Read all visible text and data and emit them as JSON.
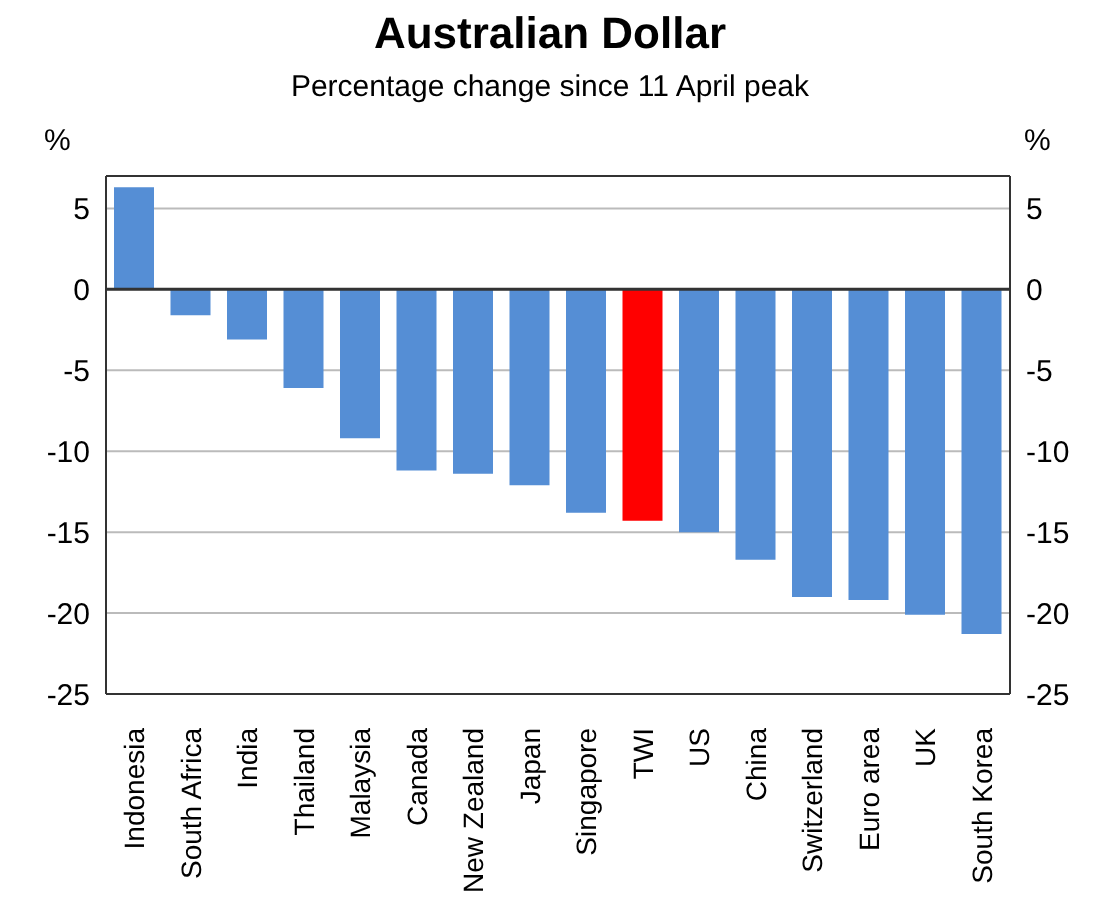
{
  "chart_data": {
    "type": "bar",
    "title": "Australian Dollar",
    "subtitle": "Percentage change since 11 April peak",
    "ylabel": "%",
    "y2label": "%",
    "categories": [
      "Indonesia",
      "South Africa",
      "India",
      "Thailand",
      "Malaysia",
      "Canada",
      "New Zealand",
      "Japan",
      "Singapore",
      "TWI",
      "US",
      "China",
      "Switzerland",
      "Euro area",
      "UK",
      "South Korea"
    ],
    "values": [
      6.3,
      -1.6,
      -3.1,
      -6.1,
      -9.2,
      -11.2,
      -11.4,
      -12.1,
      -13.8,
      -14.3,
      -15.0,
      -16.7,
      -19.0,
      -19.2,
      -20.1,
      -21.3
    ],
    "colors": [
      "#558ed5",
      "#558ed5",
      "#558ed5",
      "#558ed5",
      "#558ed5",
      "#558ed5",
      "#558ed5",
      "#558ed5",
      "#558ed5",
      "#ff0000",
      "#558ed5",
      "#558ed5",
      "#558ed5",
      "#558ed5",
      "#558ed5",
      "#558ed5"
    ],
    "ylim": [
      -25,
      7
    ],
    "yticks": [
      -25,
      -20,
      -15,
      -10,
      -5,
      0,
      5
    ],
    "y2lim": [
      -25,
      7
    ],
    "y2ticks": [
      -25,
      -20,
      -15,
      -10,
      -5,
      0,
      5
    ],
    "grid": "y"
  }
}
